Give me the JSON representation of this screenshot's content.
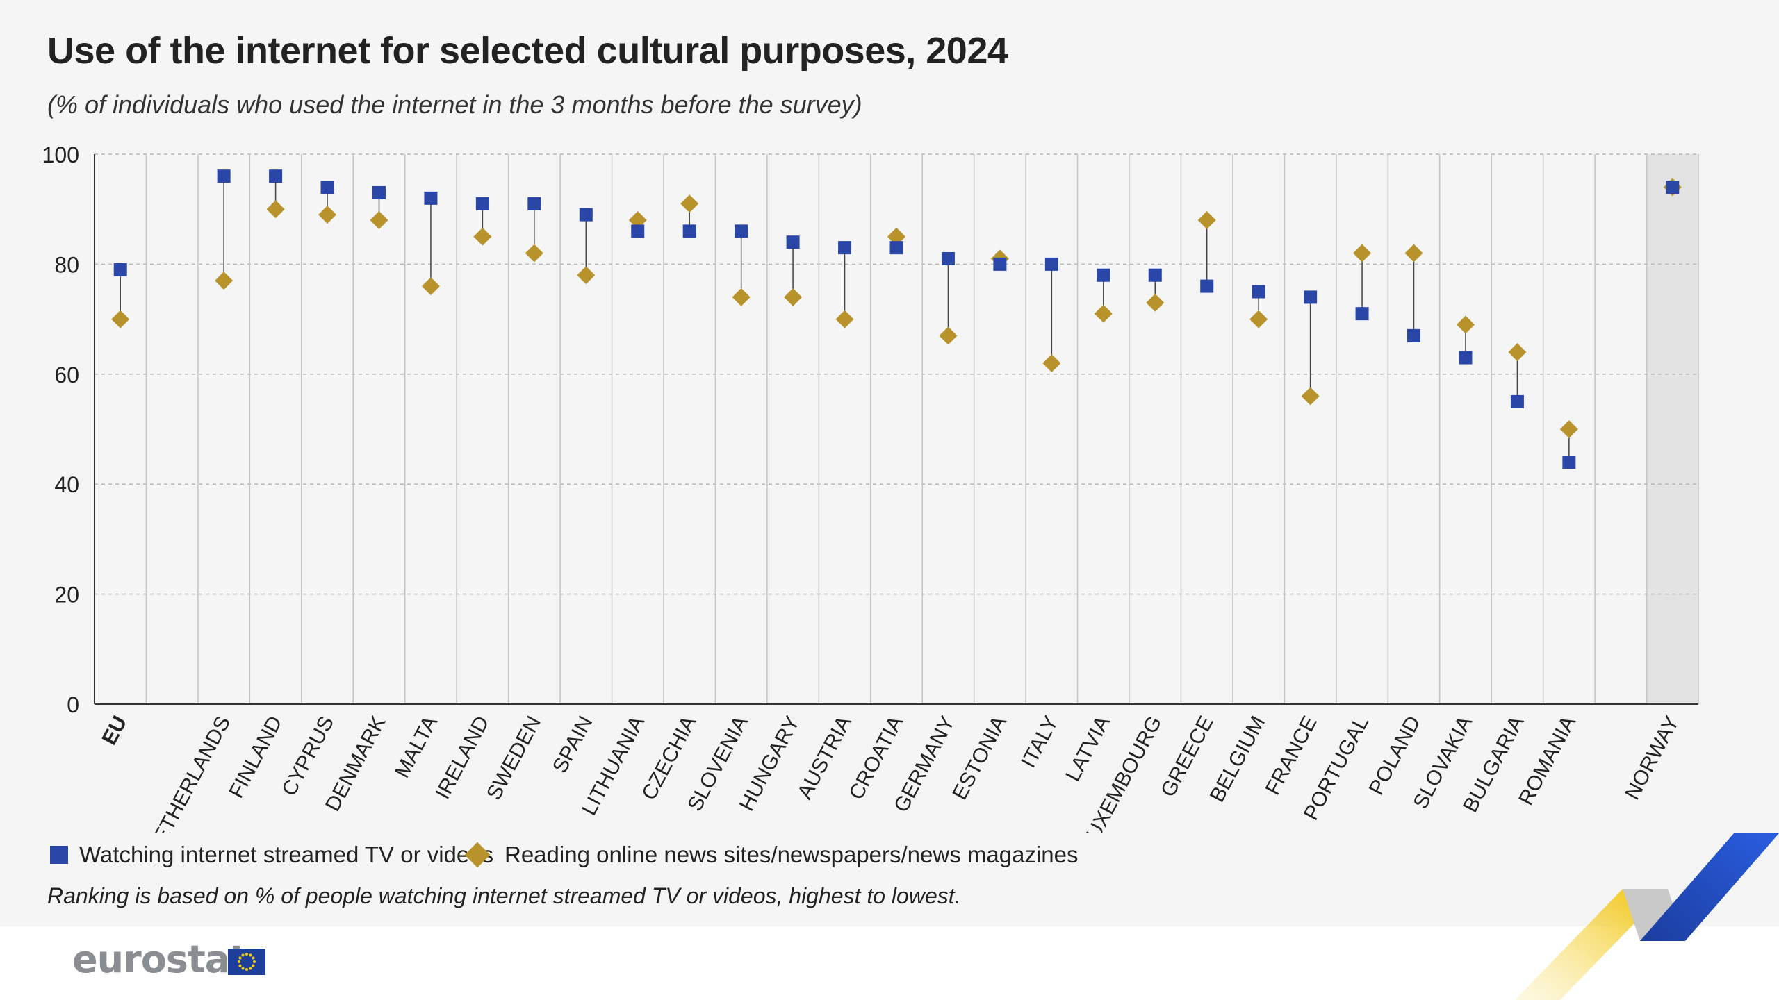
{
  "title": "Use of the internet for selected cultural purposes, 2024",
  "subtitle": "(% of individuals who used the internet in the 3 months before the survey)",
  "note": "Ranking is based on % of people watching internet streamed TV or videos, highest to lowest.",
  "brand": {
    "logo_text": "eurostat",
    "flag_icon": "eu-flag-icon"
  },
  "colors": {
    "streamed": "#2a47a8",
    "news": "#b8922a",
    "highlight_band": "#e3e3e3"
  },
  "chart_data": {
    "type": "scatter",
    "title": "Use of the internet for selected cultural purposes, 2024",
    "subtitle": "(% of individuals who used the internet in the 3 months before the survey)",
    "ylim": [
      0,
      100
    ],
    "yticks": [
      0,
      20,
      40,
      60,
      80,
      100
    ],
    "grid": true,
    "legend_position": "bottom",
    "categories": [
      "EU",
      "",
      "NETHERLANDS",
      "FINLAND",
      "CYPRUS",
      "DENMARK",
      "MALTA",
      "IRELAND",
      "SWEDEN",
      "SPAIN",
      "LITHUANIA",
      "CZECHIA",
      "SLOVENIA",
      "HUNGARY",
      "AUSTRIA",
      "CROATIA",
      "GERMANY",
      "ESTONIA",
      "ITALY",
      "LATVIA",
      "LUXEMBOURG",
      "GREECE",
      "BELGIUM",
      "FRANCE",
      "PORTUGAL",
      "POLAND",
      "SLOVAKIA",
      "BULGARIA",
      "ROMANIA",
      "",
      "NORWAY"
    ],
    "highlight_category": "NORWAY",
    "bold_category": "EU",
    "series": [
      {
        "name": "Watching internet streamed TV or videos",
        "marker": "square",
        "values": [
          79,
          null,
          96,
          96,
          94,
          93,
          92,
          91,
          91,
          89,
          86,
          86,
          86,
          84,
          83,
          83,
          81,
          80,
          80,
          78,
          78,
          76,
          75,
          74,
          71,
          67,
          63,
          55,
          44,
          null,
          94
        ]
      },
      {
        "name": "Reading online news sites/newspapers/news magazines",
        "marker": "diamond",
        "values": [
          70,
          null,
          77,
          90,
          89,
          88,
          76,
          85,
          82,
          78,
          88,
          91,
          74,
          74,
          70,
          85,
          67,
          81,
          62,
          71,
          73,
          88,
          70,
          56,
          82,
          82,
          69,
          64,
          50,
          null,
          94
        ]
      }
    ]
  }
}
